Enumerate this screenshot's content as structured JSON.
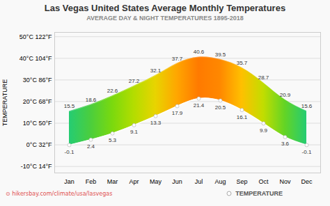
{
  "chart_data": {
    "type": "area",
    "title": "Las Vegas United States Average Monthly Temperatures",
    "subtitle": "AVERAGE DAY & NIGHT TEMPERATURES 1895-2018",
    "ylabel": "TEMPERATURE",
    "annotations": [
      "⊙ hikersbay.com/climate/usa/lasvegas"
    ],
    "categories": [
      "Jan",
      "Feb",
      "Mar",
      "Apr",
      "May",
      "Jun",
      "Jul",
      "Aug",
      "Sep",
      "Oct",
      "Nov",
      "Dec"
    ],
    "series": [
      {
        "type": "area",
        "color": "#ffffff",
        "values": [
          15.5,
          18.6,
          22.6,
          27.2,
          32.1,
          37.7,
          40.6,
          39.5,
          35.7,
          28.7,
          20.9,
          15.6
        ]
      },
      {
        "name": "TEMPERATURE",
        "type": "line",
        "marker": "circle",
        "color": "#ffffff",
        "values": [
          -0.1,
          2.4,
          5.3,
          9.1,
          13.3,
          17.9,
          21.4,
          20.5,
          16.1,
          9.9,
          3.6,
          -0.1
        ]
      }
    ],
    "ylim": [
      -13,
      52
    ],
    "yticks": [
      {
        "value": -10,
        "label": "-10°C 14°F"
      },
      {
        "value": 0,
        "label": "0°C 32°F"
      },
      {
        "value": 10,
        "label": "10°C 50°F"
      },
      {
        "value": 20,
        "label": "20°C 68°F"
      },
      {
        "value": 30,
        "label": "30°C 86°F"
      },
      {
        "value": 40,
        "label": "40°C 104°F"
      },
      {
        "value": 50,
        "label": "50°C 122°F"
      }
    ],
    "grid": true,
    "legend": "bottom",
    "data_labels": true
  }
}
